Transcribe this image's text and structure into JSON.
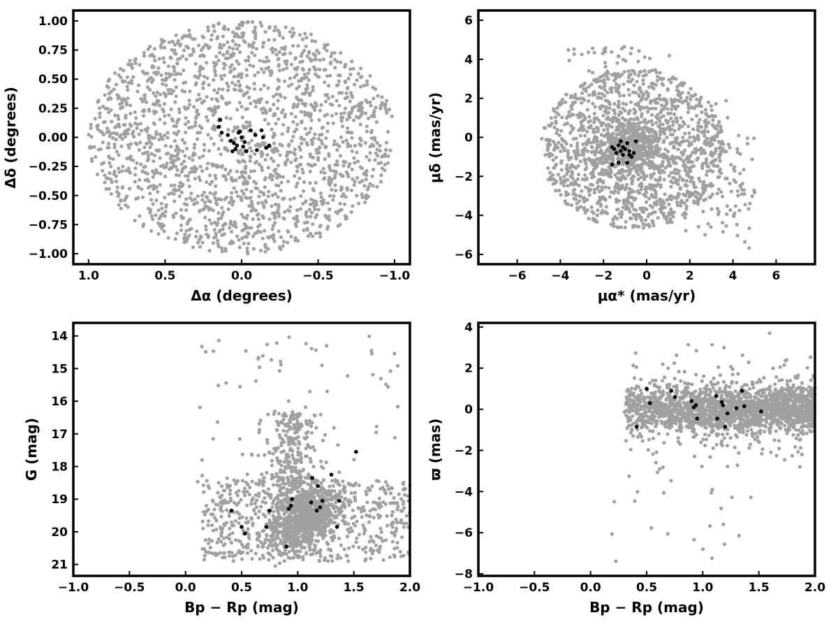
{
  "colors": {
    "field": "#a0a0a0",
    "member": "#000000",
    "frame": "#000000"
  },
  "chart_data": [
    {
      "type": "scatter",
      "name": "panel-sky-position",
      "xlabel": "Δα (degrees)",
      "ylabel": "Δδ (degrees)",
      "xlim": [
        1.1,
        -1.1
      ],
      "ylim": [
        -1.09,
        1.09
      ],
      "x_reversed": true,
      "xticks": [
        1.0,
        0.5,
        0.0,
        -0.5,
        -1.0
      ],
      "xtick_labels": [
        "1.0",
        "0.5",
        "0.0",
        "−0.5",
        "−1.0"
      ],
      "yticks": [
        1.0,
        0.75,
        0.5,
        0.25,
        0.0,
        -0.25,
        -0.5,
        -0.75,
        -1.0
      ],
      "ytick_labels": [
        "1.00",
        "0.75",
        "0.50",
        "0.25",
        "0.00",
        "−0.25",
        "−0.50",
        "−0.75",
        "−1.00"
      ],
      "grid": false,
      "field_distribution": "approx. 1900 field stars uniformly filling a circle of radius 1.0 degree centred at (0, 0)",
      "members": {
        "x": [
          0.14,
          0.15,
          0.13,
          0.09,
          0.07,
          0.05,
          0.04,
          0.03,
          0.02,
          0.0,
          -0.01,
          -0.03,
          -0.06,
          -0.09,
          -0.1,
          -0.13,
          -0.14,
          -0.16,
          -0.18,
          0.06,
          0.01,
          -0.02
        ],
        "y": [
          0.15,
          0.09,
          0.04,
          0.02,
          -0.03,
          -0.05,
          -0.1,
          -0.07,
          0.04,
          0.0,
          -0.08,
          -0.12,
          0.06,
          0.02,
          -0.11,
          0.06,
          0.0,
          -0.09,
          -0.07,
          -0.12,
          0.05,
          -0.04
        ]
      }
    },
    {
      "type": "scatter",
      "name": "panel-proper-motion",
      "xlabel": "μα* (mas/yr)",
      "ylabel": "μδ (mas/yr)",
      "xlim": [
        -7.8,
        7.8
      ],
      "ylim": [
        -6.5,
        6.5
      ],
      "xticks": [
        -6,
        -4,
        -2,
        0,
        2,
        4,
        6
      ],
      "xtick_labels": [
        "−6",
        "−4",
        "−2",
        "0",
        "2",
        "4",
        "6"
      ],
      "yticks": [
        -6,
        -4,
        -2,
        0,
        2,
        4,
        6
      ],
      "ytick_labels": [
        "−6",
        "−4",
        "−2",
        "0",
        "2",
        "4",
        "6"
      ],
      "grid": false,
      "field_distribution": "approx. 2000 field stars, dense clump near (-0.8, -0.5) inside a broad disc of radius about 4.5 mas/yr centred near (-0.6, -0.6), plus a sparse tail toward positive μα*",
      "members": {
        "x": [
          -1.6,
          -1.5,
          -1.4,
          -1.3,
          -1.3,
          -1.2,
          -1.2,
          -1.1,
          -1.0,
          -0.9,
          -0.9,
          -0.8,
          -0.7,
          -0.6,
          -0.5,
          -1.6,
          -1.1,
          -0.8
        ],
        "y": [
          -0.5,
          -0.6,
          -0.8,
          -0.4,
          -1.3,
          -0.2,
          -0.7,
          -0.9,
          -0.6,
          -0.3,
          -1.3,
          -0.7,
          -1.0,
          -0.8,
          -0.2,
          -1.4,
          -0.5,
          -0.9
        ]
      }
    },
    {
      "type": "scatter",
      "name": "panel-cmd",
      "xlabel": "Bp − Rp (mag)",
      "ylabel": "G (mag)",
      "xlim": [
        -1.0,
        2.0
      ],
      "ylim": [
        21.35,
        13.6
      ],
      "y_reversed": true,
      "xticks": [
        -1.0,
        -0.5,
        0.0,
        0.5,
        1.0,
        1.5,
        2.0
      ],
      "xtick_labels": [
        "−1.0",
        "−0.5",
        "0.0",
        "0.5",
        "1.0",
        "1.5",
        "2.0"
      ],
      "yticks": [
        21,
        20,
        19,
        18,
        17,
        16,
        15,
        14
      ],
      "ytick_labels": [
        "21",
        "20",
        "19",
        "18",
        "17",
        "16",
        "15",
        "14"
      ],
      "grid": false,
      "field_distribution": "approx. 2000 field stars, dense band from (0.9, 20.2) to (1.2, 19.0) with a plume down to G about 16 near colour 0.9-1.0, and a sparse fringe out to colour 2.0",
      "members": {
        "x": [
          0.41,
          0.5,
          0.53,
          0.72,
          0.75,
          0.9,
          0.92,
          0.94,
          0.95,
          1.12,
          1.13,
          1.17,
          1.18,
          1.2,
          1.22,
          1.3,
          1.35,
          1.37,
          1.52
        ],
        "y": [
          19.35,
          19.85,
          20.05,
          19.85,
          19.35,
          20.45,
          19.3,
          19.2,
          19.0,
          19.1,
          18.35,
          19.35,
          18.6,
          19.25,
          19.05,
          18.25,
          19.85,
          19.05,
          17.55
        ]
      }
    },
    {
      "type": "scatter",
      "name": "panel-parallax",
      "xlabel": "Bp − Rp (mag)",
      "ylabel": "ϖ (mas)",
      "xlim": [
        -1.0,
        2.0
      ],
      "ylim": [
        -8.1,
        4.2
      ],
      "xticks": [
        -1.0,
        -0.5,
        0.0,
        0.5,
        1.0,
        1.5,
        2.0
      ],
      "xtick_labels": [
        "−1.0",
        "−0.5",
        "0.0",
        "0.5",
        "1.0",
        "1.5",
        "2.0"
      ],
      "yticks": [
        4,
        2,
        0,
        -2,
        -4,
        -6,
        -8
      ],
      "ytick_labels": [
        "4",
        "2",
        "0",
        "−2",
        "−4",
        "−6",
        "−8"
      ],
      "grid": false,
      "field_distribution": "approx. 2000 field stars forming a horizontal band around ϖ 0 with spread about 0.6 mas for colour 0.3 to 2.0, with sparse outliers down to ϖ -7.6",
      "members": {
        "x": [
          0.41,
          0.5,
          0.53,
          0.72,
          0.75,
          0.9,
          0.92,
          0.94,
          0.95,
          1.12,
          1.13,
          1.17,
          1.18,
          1.2,
          1.22,
          1.3,
          1.35,
          1.37,
          1.52
        ],
        "y": [
          -0.85,
          1.0,
          0.3,
          0.9,
          0.6,
          0.4,
          0.1,
          0.2,
          -0.45,
          0.65,
          -0.45,
          0.35,
          0.2,
          -0.85,
          -0.2,
          0.05,
          0.9,
          0.15,
          -0.1
        ]
      }
    }
  ]
}
